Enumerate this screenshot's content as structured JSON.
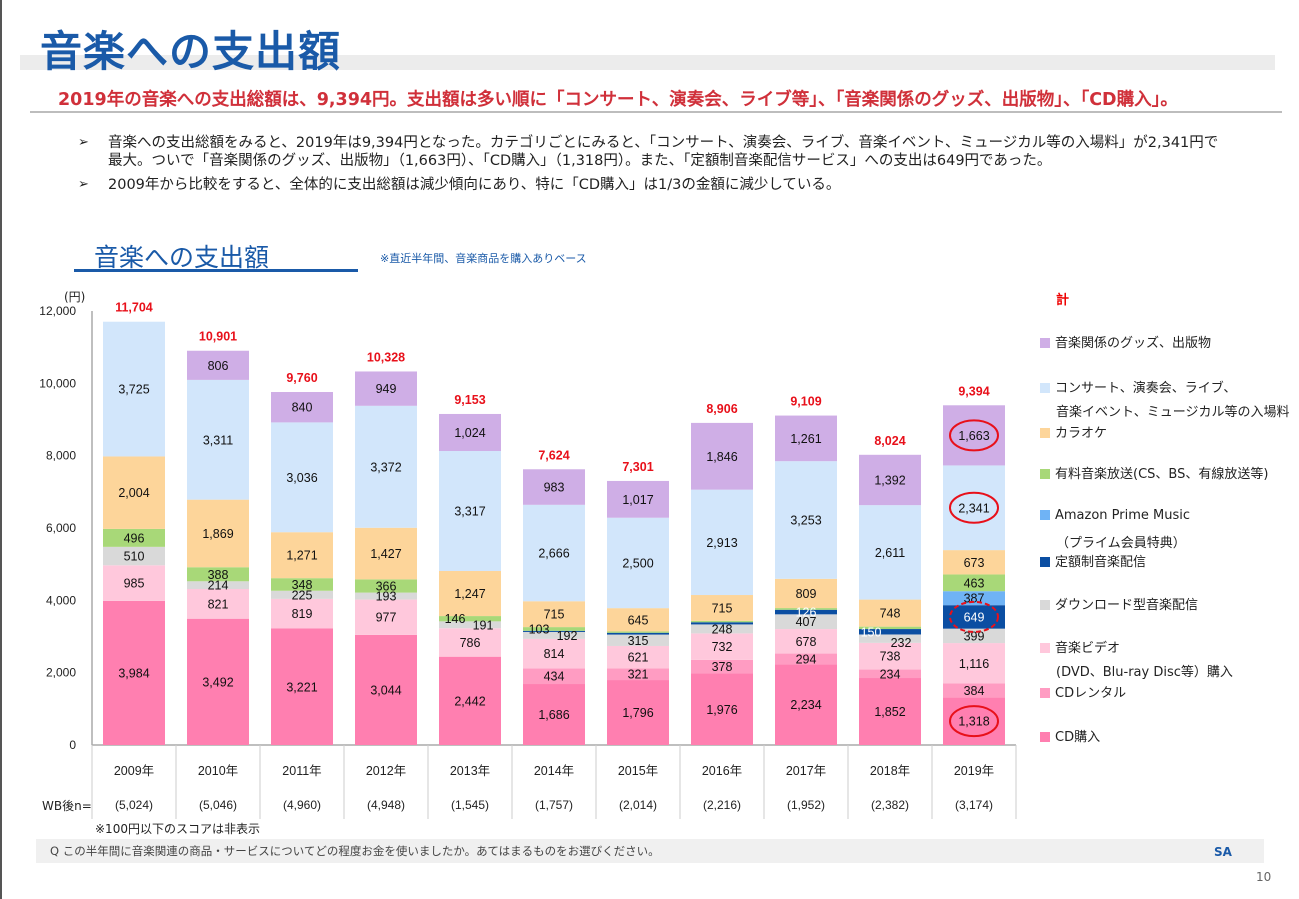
{
  "page": {
    "title": "音楽への支出額",
    "headline": "2019年の音楽への支出総額は、9,394円。支出額は多い順に「コンサート、演奏会、ライブ等」、「音楽関係のグッズ、出版物」、「CD購入」。",
    "bullets": [
      {
        "icon": "arrow-bullet-icon",
        "symbol": "➢",
        "lines": [
          "音楽への支出総額をみると、2019年は9,394円となった。カテゴリごとにみると、「コンサート、演奏会、ライブ、音楽イベント、ミュージカル等の入場料」が2,341円で",
          "最大。ついで「音楽関係のグッズ、出版物」（1,663円）、「CD購入」（1,318円）。また、「定額制音楽配信サービス」への支出は649円であった。"
        ]
      },
      {
        "icon": "arrow-bullet-icon",
        "symbol": "➢",
        "lines": [
          "2009年から比較をすると、全体的に支出総額は減少傾向にあり、特に「CD購入」は1/3の金額に減少している。"
        ]
      }
    ],
    "section_title": "音楽への支出額",
    "section_note": "※直近半年間、音楽商品を購入ありベース",
    "wb_label": "WB後n=",
    "note_100": "※100円以下のスコアは非表示",
    "question": "Q  この半年間に音楽関連の商品・サービスについてどの程度お金を使いましたか。あてはまるものをお選びください。",
    "sa": "SA",
    "page_number": "10"
  },
  "chart_data": {
    "type": "bar",
    "stacked": true,
    "title": "音楽への支出額",
    "ylabel": "(円)",
    "ylim": [
      0,
      12000
    ],
    "yticks": [
      0,
      2000,
      4000,
      6000,
      8000,
      10000,
      12000
    ],
    "ytick_labels": [
      "0",
      "2,000",
      "4,000",
      "6,000",
      "8,000",
      "10,000",
      "12,000"
    ],
    "categories": [
      "2009年",
      "2010年",
      "2011年",
      "2012年",
      "2013年",
      "2014年",
      "2015年",
      "2016年",
      "2017年",
      "2018年",
      "2019年"
    ],
    "n_values": [
      "(5,024)",
      "(5,046)",
      "(4,960)",
      "(4,948)",
      "(1,545)",
      "(1,757)",
      "(2,014)",
      "(2,216)",
      "(1,952)",
      "(2,382)",
      "(3,174)"
    ],
    "totals": [
      11704,
      10901,
      9760,
      10328,
      9153,
      7624,
      7301,
      8906,
      9109,
      8024,
      9394
    ],
    "total_label": "計",
    "total_color": "#e8101a",
    "legend_position": "right",
    "series": [
      {
        "name": "CD購入",
        "color": "#ff7fb0",
        "values": [
          3984,
          3492,
          3221,
          3044,
          2442,
          1686,
          1796,
          1976,
          2234,
          1852,
          1318
        ],
        "labels": [
          "3,984",
          "3,492",
          "3,221",
          "3,044",
          "2,442",
          "1,686",
          "1,796",
          "1,976",
          "2,234",
          "1,852",
          "1,318"
        ]
      },
      {
        "name": "CDレンタル",
        "color": "#ff9cc2",
        "values": [
          0,
          0,
          0,
          0,
          0,
          434,
          321,
          378,
          294,
          234,
          384
        ],
        "labels": [
          "",
          "",
          "",
          "",
          "",
          "434",
          "321",
          "378",
          "294",
          "234",
          "384"
        ]
      },
      {
        "name": "音楽ビデオ(DVD、Blu-ray Disc等）購入",
        "color": "#ffc8dc",
        "values": [
          985,
          821,
          819,
          977,
          786,
          814,
          621,
          732,
          678,
          738,
          1116
        ],
        "labels": [
          "985",
          "821",
          "819",
          "977",
          "786",
          "814",
          "621",
          "732",
          "678",
          "738",
          "1,116"
        ]
      },
      {
        "name": "ダウンロード型音楽配信",
        "color": "#d9d9d9",
        "values": [
          510,
          214,
          225,
          193,
          191,
          192,
          315,
          248,
          407,
          232,
          399
        ],
        "labels": [
          "510",
          "214",
          "225",
          "193",
          "191",
          "192",
          "315",
          "248",
          "407",
          "232",
          "399"
        ]
      },
      {
        "name": "定額制音楽配信",
        "color": "#0b4ea2",
        "values": [
          0,
          0,
          0,
          0,
          0,
          31,
          50,
          60,
          126,
          150,
          649
        ],
        "labels": [
          "",
          "",
          "",
          "",
          "",
          "",
          "",
          "",
          "126",
          "150",
          "649"
        ]
      },
      {
        "name": "Amazon Prime Music（プライム会員特典）",
        "color": "#6fb3f5",
        "values": [
          0,
          0,
          0,
          0,
          0,
          0,
          0,
          0,
          0,
          0,
          387
        ],
        "labels": [
          "",
          "",
          "",
          "",
          "",
          "",
          "",
          "",
          "",
          "",
          "387"
        ]
      },
      {
        "name": "有料音楽放送(CS、BS、有線放送等)",
        "color": "#a8d878",
        "values": [
          496,
          388,
          348,
          366,
          146,
          103,
          36,
          38,
          47,
          67,
          463
        ],
        "labels": [
          "496",
          "388",
          "348",
          "366",
          "146",
          "103",
          "",
          "",
          "",
          "",
          "463"
        ]
      },
      {
        "name": "カラオケ",
        "color": "#fdd59a",
        "values": [
          2004,
          1869,
          1271,
          1427,
          1247,
          715,
          645,
          715,
          809,
          748,
          673
        ],
        "labels": [
          "2,004",
          "1,869",
          "1,271",
          "1,427",
          "1,247",
          "715",
          "645",
          "715",
          "809",
          "748",
          "673"
        ]
      },
      {
        "name": "コンサート、演奏会、ライブ、音楽イベント、ミュージカル等の入場料",
        "color": "#d2e6fb",
        "values": [
          3725,
          3311,
          3036,
          3372,
          3317,
          2666,
          2500,
          2913,
          3253,
          2611,
          2341
        ],
        "labels": [
          "3,725",
          "3,311",
          "3,036",
          "3,372",
          "3,317",
          "2,666",
          "2,500",
          "2,913",
          "3,253",
          "2,611",
          "2,341"
        ]
      },
      {
        "name": "音楽関係のグッズ、出版物",
        "color": "#cfaee6",
        "values": [
          0,
          806,
          840,
          949,
          1024,
          983,
          1017,
          1846,
          1261,
          1392,
          1663
        ],
        "labels": [
          "",
          "806",
          "840",
          "949",
          "1,024",
          "983",
          "1,017",
          "1,846",
          "1,261",
          "1,392",
          "1,663"
        ]
      }
    ],
    "highlights_2019": [
      {
        "series": "音楽関係のグッズ、出版物",
        "value": "1,663",
        "style": "solid-circle"
      },
      {
        "series": "コンサート、演奏会、ライブ、音楽イベント、ミュージカル等の入場料",
        "value": "2,341",
        "style": "solid-circle"
      },
      {
        "series": "定額制音楽配信",
        "value": "649",
        "style": "dashed-circle"
      },
      {
        "series": "CD購入",
        "value": "1,318",
        "style": "solid-circle"
      }
    ],
    "legend": [
      {
        "label": "音楽関係のグッズ、出版物",
        "color": "#cfaee6"
      },
      {
        "label": "コンサート、演奏会、ライブ、",
        "label2": "音楽イベント、ミュージカル等の入場料",
        "color": "#d2e6fb"
      },
      {
        "label": "カラオケ",
        "color": "#fdd59a"
      },
      {
        "label": "有料音楽放送(CS、BS、有線放送等)",
        "color": "#a8d878"
      },
      {
        "label": "Amazon Prime Music",
        "label2": "（プライム会員特典）",
        "color": "#6fb3f5"
      },
      {
        "label": "定額制音楽配信",
        "color": "#0b4ea2"
      },
      {
        "label": "ダウンロード型音楽配信",
        "color": "#d9d9d9"
      },
      {
        "label": "音楽ビデオ",
        "label2": "(DVD、Blu-ray Disc等）購入",
        "color": "#ffc8dc"
      },
      {
        "label": "CDレンタル",
        "color": "#ff9cc2"
      },
      {
        "label": "CD購入",
        "color": "#ff7fb0"
      }
    ]
  }
}
